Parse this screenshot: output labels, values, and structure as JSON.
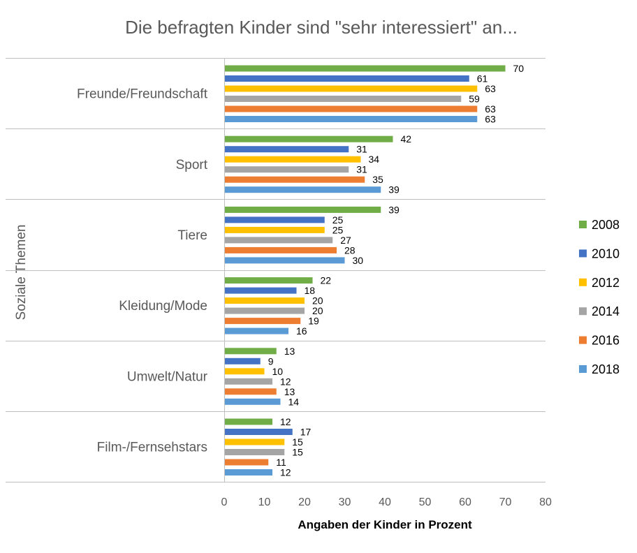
{
  "chart_data": {
    "type": "bar",
    "orientation": "horizontal",
    "title": "Die befragten Kinder sind \"sehr interessiert\" an...",
    "xlabel": "Angaben der Kinder in Prozent",
    "ylabel": "Soziale Themen",
    "xlim": [
      0,
      80
    ],
    "xticks": [
      0,
      10,
      20,
      30,
      40,
      50,
      60,
      70,
      80
    ],
    "grid": false,
    "legend": "right",
    "categories": [
      "Freunde/Freundschaft",
      "Sport",
      "Tiere",
      "Kleidung/Mode",
      "Umwelt/Natur",
      "Film-/Fernsehstars"
    ],
    "series": [
      {
        "name": "2008",
        "color": "#70AD47",
        "values": [
          70,
          42,
          39,
          22,
          13,
          12
        ]
      },
      {
        "name": "2010",
        "color": "#4472C4",
        "values": [
          61,
          31,
          25,
          18,
          9,
          17
        ]
      },
      {
        "name": "2012",
        "color": "#FFC000",
        "values": [
          63,
          34,
          25,
          20,
          10,
          15
        ]
      },
      {
        "name": "2014",
        "color": "#A5A5A5",
        "values": [
          59,
          31,
          27,
          20,
          12,
          15
        ]
      },
      {
        "name": "2016",
        "color": "#ED7D31",
        "values": [
          63,
          35,
          28,
          19,
          13,
          11
        ]
      },
      {
        "name": "2018",
        "color": "#5B9BD5",
        "values": [
          63,
          39,
          30,
          16,
          14,
          12
        ]
      }
    ]
  }
}
